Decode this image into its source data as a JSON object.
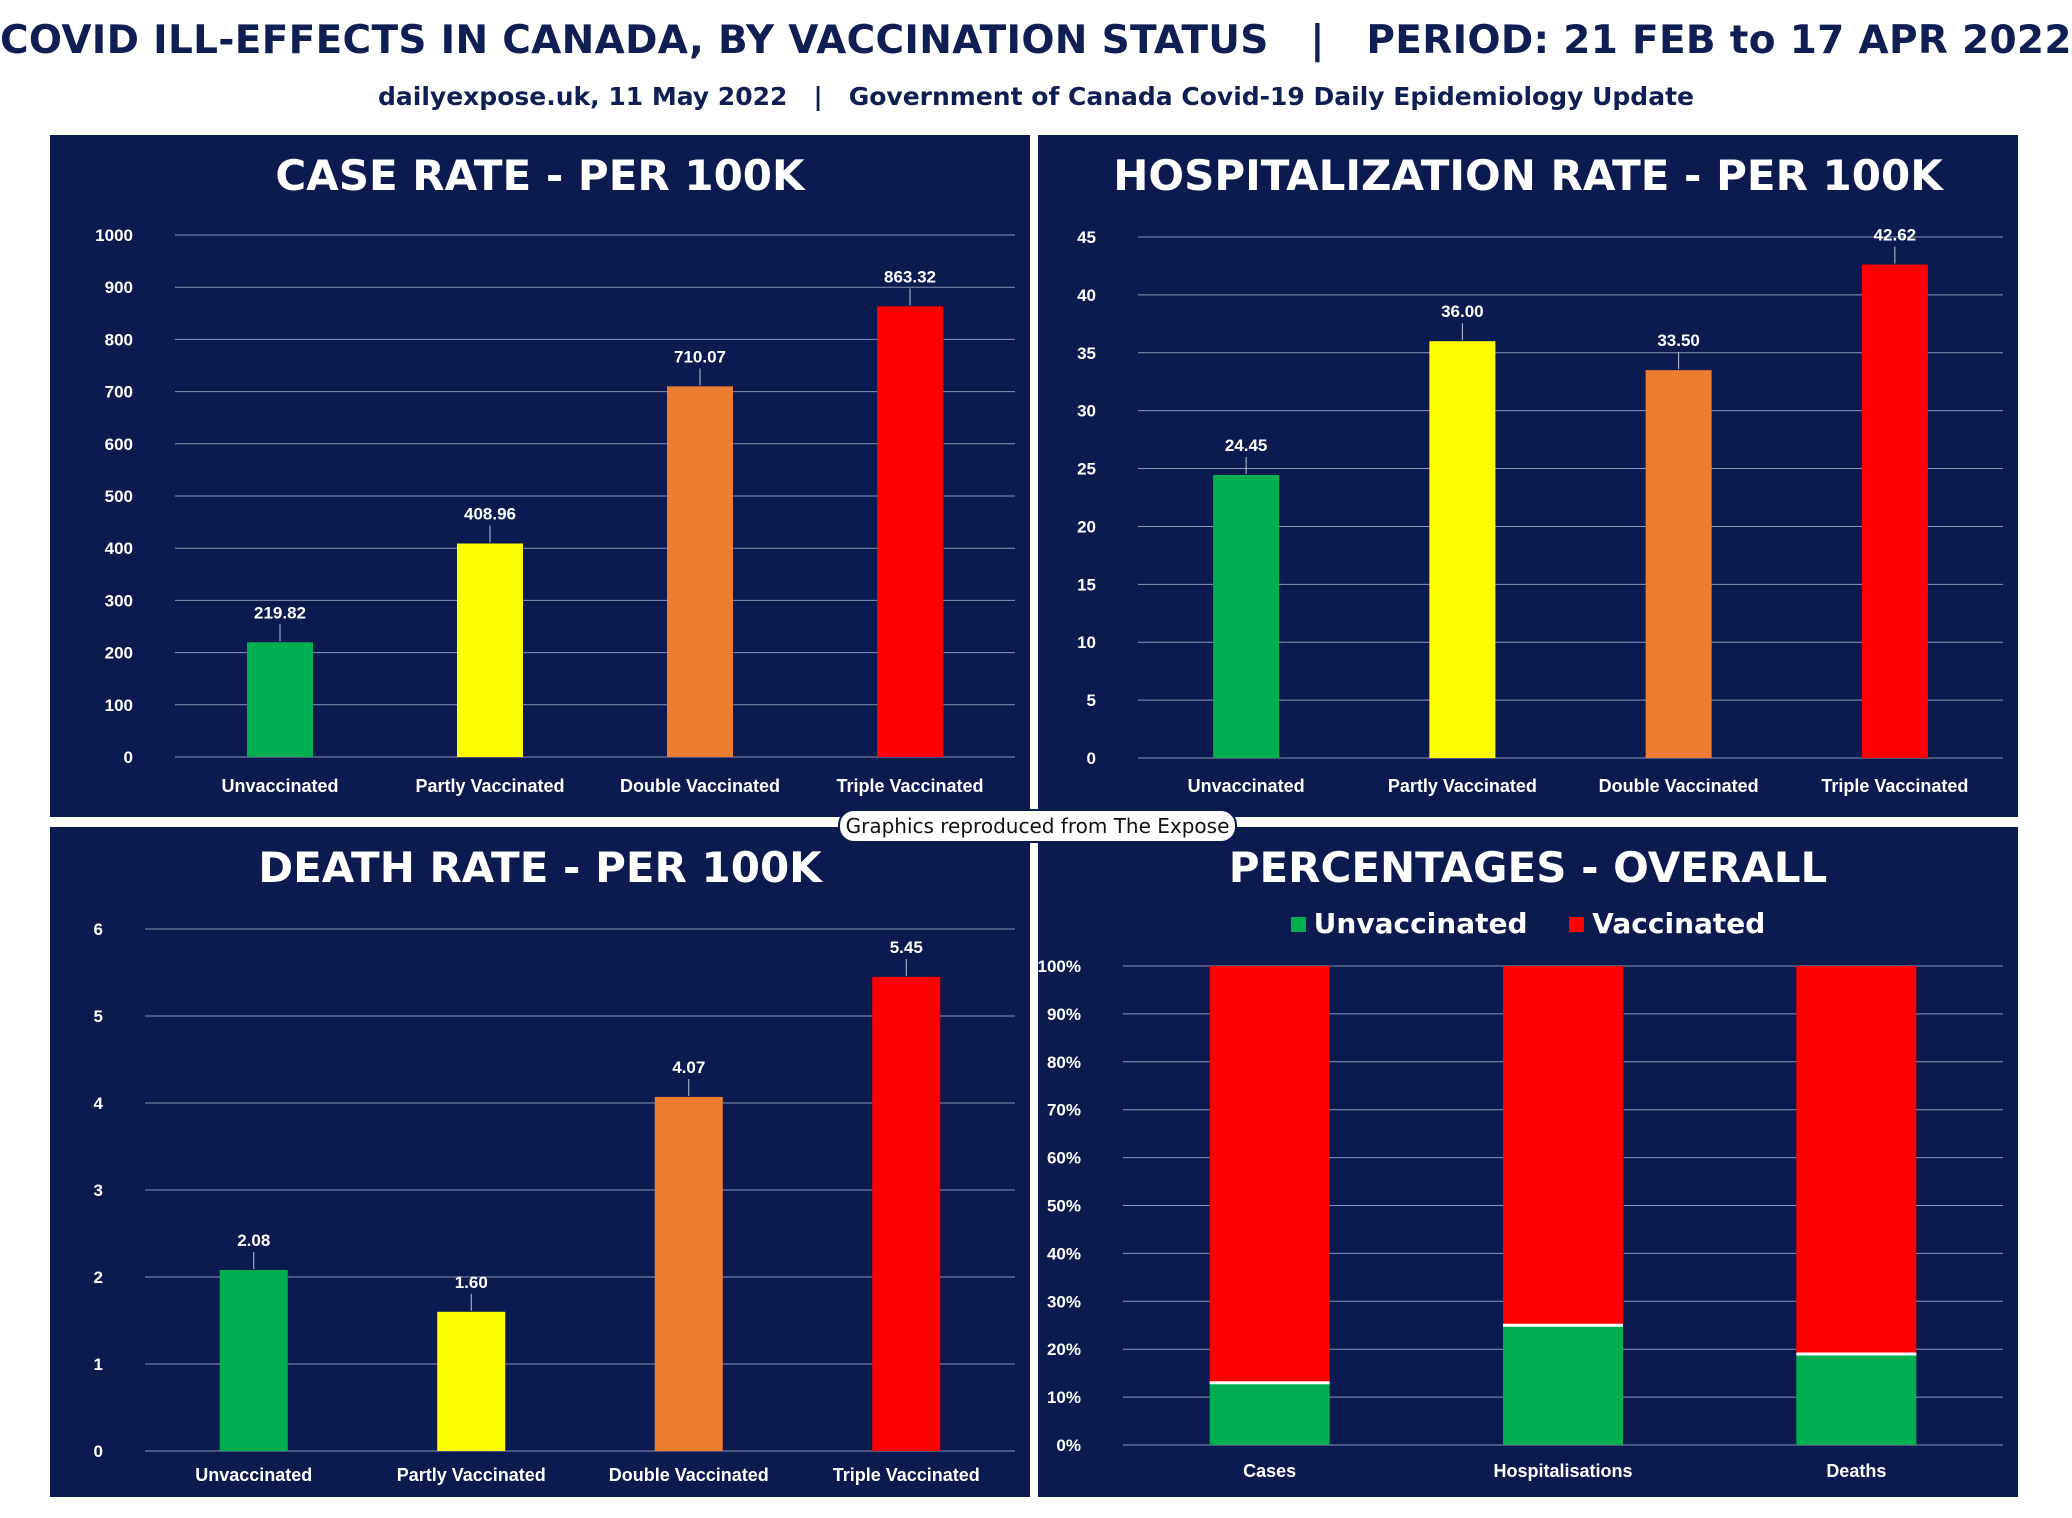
{
  "header": {
    "title": "COVID ILL-EFFECTS IN CANADA, BY VACCINATION STATUS   |   PERIOD: 21 FEB to 17 APR 2022",
    "subtitle": "dailyexpose.uk, 11 May 2022   |   Government of Canada Covid-19 Daily Epidemiology Update"
  },
  "footer_note": "Graphics reproduced from The Expose",
  "colors": {
    "panel_bg": "#0b1a4f",
    "unvaccinated": "#00b050",
    "partly": "#ffff00",
    "double": "#ed7d31",
    "triple": "#ff0000",
    "vaccinated": "#ff0000"
  },
  "chart_data": [
    {
      "type": "bar",
      "title": "CASE RATE - PER 100K",
      "categories": [
        "Unvaccinated",
        "Partly Vaccinated",
        "Double Vaccinated",
        "Triple Vaccinated"
      ],
      "values": [
        219.82,
        408.96,
        710.07,
        863.32
      ],
      "value_labels": [
        "219.82",
        "408.96",
        "710.07",
        "863.32"
      ],
      "colors": [
        "#00b050",
        "#ffff00",
        "#ed7d31",
        "#ff0000"
      ],
      "ylim": [
        0,
        1000
      ],
      "yticks": [
        0,
        100,
        200,
        300,
        400,
        500,
        600,
        700,
        800,
        900,
        1000
      ],
      "ytick_labels": [
        "0",
        "100",
        "200",
        "300",
        "400",
        "500",
        "600",
        "700",
        "800",
        "900",
        "1000"
      ],
      "grid": true
    },
    {
      "type": "bar",
      "title": "HOSPITALIZATION RATE - PER 100K",
      "categories": [
        "Unvaccinated",
        "Partly Vaccinated",
        "Double Vaccinated",
        "Triple Vaccinated"
      ],
      "values": [
        24.45,
        36.0,
        33.5,
        42.62
      ],
      "value_labels": [
        "24.45",
        "36.00",
        "33.50",
        "42.62"
      ],
      "colors": [
        "#00b050",
        "#ffff00",
        "#ed7d31",
        "#ff0000"
      ],
      "ylim": [
        0,
        45
      ],
      "yticks": [
        0,
        5,
        10,
        15,
        20,
        25,
        30,
        35,
        40,
        45
      ],
      "ytick_labels": [
        "0",
        "5",
        "10",
        "15",
        "20",
        "25",
        "30",
        "35",
        "40",
        "45"
      ],
      "grid": true
    },
    {
      "type": "bar",
      "title": "DEATH RATE - PER 100K",
      "categories": [
        "Unvaccinated",
        "Partly Vaccinated",
        "Double Vaccinated",
        "Triple Vaccinated"
      ],
      "values": [
        2.08,
        1.6,
        4.07,
        5.45
      ],
      "value_labels": [
        "2.08",
        "1.60",
        "4.07",
        "5.45"
      ],
      "colors": [
        "#00b050",
        "#ffff00",
        "#ed7d31",
        "#ff0000"
      ],
      "ylim": [
        0,
        6
      ],
      "yticks": [
        0,
        1,
        2,
        3,
        4,
        5,
        6
      ],
      "ytick_labels": [
        "0",
        "1",
        "2",
        "3",
        "4",
        "5",
        "6"
      ],
      "grid": true
    },
    {
      "type": "bar",
      "stacked": true,
      "title": "PERCENTAGES - OVERALL",
      "categories": [
        "Cases",
        "Hospitalisations",
        "Deaths"
      ],
      "series": [
        {
          "name": "Unvaccinated",
          "values": [
            13,
            25,
            19
          ],
          "color": "#00b050"
        },
        {
          "name": "Vaccinated",
          "values": [
            87,
            75,
            81
          ],
          "color": "#ff0000"
        }
      ],
      "ylim": [
        0,
        100
      ],
      "yticks": [
        0,
        10,
        20,
        30,
        40,
        50,
        60,
        70,
        80,
        90,
        100
      ],
      "ytick_labels": [
        "0%",
        "10%",
        "20%",
        "30%",
        "40%",
        "50%",
        "60%",
        "70%",
        "80%",
        "90%",
        "100%"
      ],
      "legend_position": "top",
      "grid": true
    }
  ]
}
